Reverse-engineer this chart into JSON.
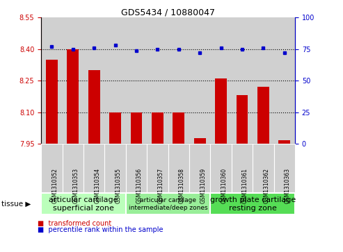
{
  "title": "GDS5434 / 10880047",
  "samples": [
    "GSM1310352",
    "GSM1310353",
    "GSM1310354",
    "GSM1310355",
    "GSM1310356",
    "GSM1310357",
    "GSM1310358",
    "GSM1310359",
    "GSM1310360",
    "GSM1310361",
    "GSM1310362",
    "GSM1310363"
  ],
  "bar_values": [
    8.35,
    8.4,
    8.3,
    8.1,
    8.1,
    8.1,
    8.1,
    7.975,
    8.26,
    8.18,
    8.22,
    7.965
  ],
  "dot_values": [
    77,
    75,
    76,
    78,
    74,
    75,
    75,
    72,
    76,
    75,
    76,
    72
  ],
  "ylim_left": [
    7.95,
    8.55
  ],
  "ylim_right": [
    0,
    100
  ],
  "yticks_left": [
    7.95,
    8.1,
    8.25,
    8.4,
    8.55
  ],
  "yticks_right": [
    0,
    25,
    50,
    75,
    100
  ],
  "bar_color": "#cc0000",
  "dot_color": "#0000cc",
  "bar_bottom": 7.95,
  "groups": [
    {
      "label": "articular cartilage\nsuperficial zone",
      "start": 0,
      "end": 4,
      "color": "#bbffbb",
      "fontsize": 8
    },
    {
      "label": "articular cartilage\nintermediate/deep zones",
      "start": 4,
      "end": 8,
      "color": "#99ee99",
      "fontsize": 6.5
    },
    {
      "label": "growth plate cartilage\nresting zone",
      "start": 8,
      "end": 12,
      "color": "#55dd55",
      "fontsize": 8
    }
  ],
  "legend_bar_label": "transformed count",
  "legend_dot_label": "percentile rank within the sample",
  "tissue_label": "tissue",
  "left_axis_color": "#cc0000",
  "right_axis_color": "#0000cc",
  "background_plot": "#ffffff",
  "cell_bg": "#d0d0d0"
}
